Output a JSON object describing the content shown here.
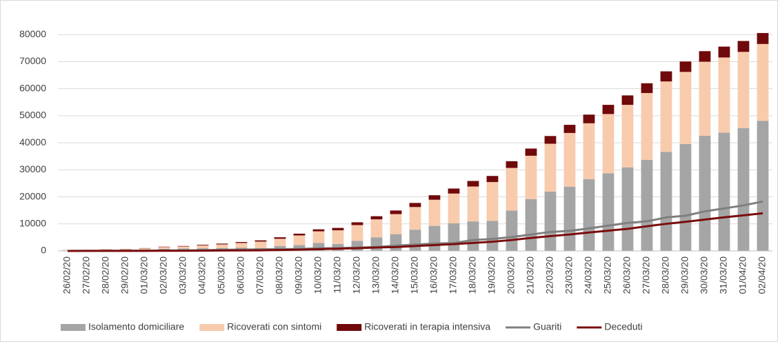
{
  "chart_data": {
    "type": "bar",
    "stacked": true,
    "categories": [
      "26/02/20",
      "27/02/20",
      "28/02/20",
      "29/02/20",
      "01/03/20",
      "02/03/20",
      "03/03/20",
      "04/03/20",
      "05/03/20",
      "06/03/20",
      "07/03/20",
      "08/03/20",
      "09/03/20",
      "10/03/20",
      "11/03/20",
      "12/03/20",
      "13/03/20",
      "14/03/20",
      "15/03/20",
      "16/03/20",
      "17/03/20",
      "18/03/20",
      "19/03/20",
      "20/03/20",
      "21/03/20",
      "22/03/20",
      "23/03/20",
      "24/03/20",
      "25/03/20",
      "26/03/20",
      "27/03/20",
      "28/03/20",
      "29/03/20",
      "30/03/20",
      "31/03/20",
      "01/04/20",
      "02/04/20"
    ],
    "series": [
      {
        "name": "Isolamento domiciliare",
        "type": "bar",
        "color": "#a5a5a5",
        "values": [
          162,
          221,
          284,
          412,
          543,
          798,
          927,
          1000,
          1065,
          1155,
          1060,
          1843,
          2180,
          2936,
          2599,
          3724,
          5036,
          6201,
          7860,
          9268,
          10197,
          10928,
          11108,
          14935,
          19185,
          21937,
          23783,
          26522,
          28697,
          30920,
          33648,
          36653,
          39533,
          42588,
          43752,
          45420,
          48134
        ]
      },
      {
        "name": "Ricoverati con sintomi",
        "type": "bar",
        "color": "#f8cbad",
        "values": [
          114,
          128,
          248,
          258,
          401,
          639,
          742,
          1034,
          1346,
          1790,
          2394,
          2651,
          3557,
          4316,
          5038,
          5838,
          6650,
          7426,
          8372,
          9663,
          11025,
          12894,
          14363,
          15757,
          16020,
          17708,
          19846,
          20692,
          21937,
          23112,
          24753,
          26029,
          26676,
          27386,
          27795,
          28192,
          28403
        ]
      },
      {
        "name": "Ricoverati in terapia intensiva",
        "type": "bar",
        "color": "#70090b",
        "values": [
          35,
          36,
          56,
          64,
          105,
          140,
          166,
          229,
          295,
          351,
          462,
          567,
          650,
          733,
          877,
          1028,
          1153,
          1328,
          1518,
          1672,
          1851,
          2060,
          2257,
          2498,
          2655,
          2857,
          3009,
          3204,
          3396,
          3489,
          3612,
          3732,
          3856,
          3906,
          4023,
          4035,
          4053
        ]
      },
      {
        "name": "Guariti",
        "type": "line",
        "color": "#7f7f7f",
        "values": [
          3,
          45,
          46,
          50,
          83,
          149,
          160,
          276,
          414,
          523,
          589,
          622,
          724,
          1004,
          1045,
          1258,
          1439,
          1966,
          2335,
          2749,
          2941,
          4025,
          4440,
          5129,
          6072,
          7024,
          7432,
          8326,
          9362,
          10361,
          10950,
          12384,
          13030,
          14620,
          15729,
          16847,
          18278
        ]
      },
      {
        "name": "Deceduti",
        "type": "line",
        "color": "#7b0c0c",
        "values": [
          12,
          17,
          21,
          29,
          34,
          52,
          79,
          107,
          148,
          197,
          233,
          366,
          463,
          631,
          827,
          1016,
          1266,
          1441,
          1809,
          2158,
          2503,
          2978,
          3405,
          4032,
          4825,
          5476,
          6077,
          6820,
          7503,
          8165,
          9134,
          10023,
          10779,
          11591,
          12428,
          13155,
          13915
        ]
      }
    ],
    "ylim": [
      0,
      90000
    ],
    "yticks": [
      0,
      10000,
      20000,
      30000,
      40000,
      50000,
      60000,
      70000,
      80000
    ],
    "grid": true,
    "legend": "bottom"
  }
}
